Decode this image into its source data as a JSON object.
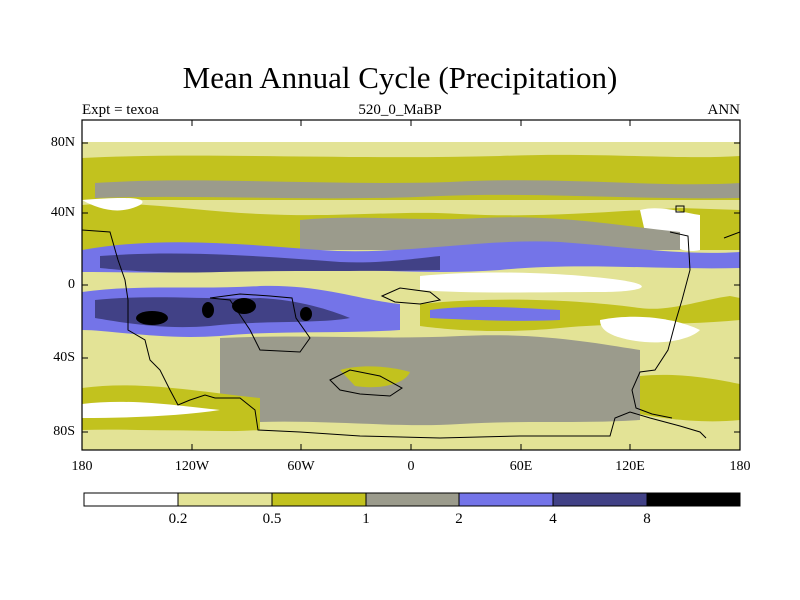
{
  "header": {
    "title": "Mean Annual Cycle (Precipitation)",
    "left_label": "Expt = texoa",
    "center_label": "520_0_MaBP",
    "right_label": "ANN"
  },
  "map": {
    "lat_ticks": [
      "80N",
      "40N",
      "0",
      "40S",
      "80S"
    ],
    "lon_ticks": [
      "180",
      "120W",
      "60W",
      "0",
      "60E",
      "120E",
      "180"
    ],
    "lat_values": [
      80,
      40,
      0,
      -40,
      -80
    ],
    "lon_values": [
      -180,
      -120,
      -60,
      0,
      60,
      120,
      180
    ]
  },
  "colorbar": {
    "levels": [
      "0.2",
      "0.5",
      "1",
      "2",
      "4",
      "8"
    ],
    "colors": [
      "#ffffff",
      "#e3e396",
      "#c2c21e",
      "#9b9b8c",
      "#7474e8",
      "#414186",
      "#000000"
    ]
  }
}
